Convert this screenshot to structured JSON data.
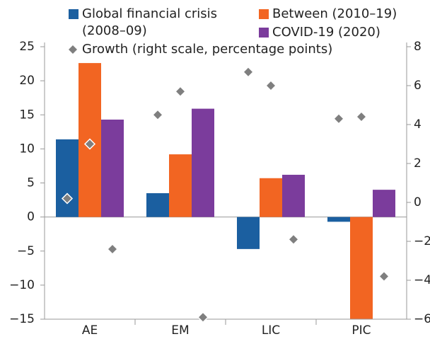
{
  "chart_data": {
    "type": "bar",
    "categories": [
      "AE",
      "EM",
      "LIC",
      "PIC"
    ],
    "series": [
      {
        "name": "Global financial crisis (2008–09)",
        "color": "#1b5fa0",
        "values": [
          11.4,
          3.5,
          -4.7,
          -0.7
        ]
      },
      {
        "name": "Between (2010–19)",
        "color": "#f26522",
        "values": [
          22.6,
          9.2,
          5.7,
          -15
        ]
      },
      {
        "name": "COVID-19 (2020)",
        "color": "#7b3c9c",
        "values": [
          14.3,
          15.9,
          6.2,
          4.0
        ]
      },
      {
        "name": "Growth (right scale, percentage points)",
        "color": "#7f7f7f",
        "axis": "y2",
        "type": "scatter",
        "values": [
          [
            0.2,
            3.0,
            -2.4
          ],
          [
            4.5,
            5.7,
            -5.9
          ],
          [
            6.7,
            6.0,
            -1.9
          ],
          [
            4.3,
            4.4,
            -3.8
          ]
        ]
      }
    ],
    "ylim": [
      -15,
      25
    ],
    "yticks": [
      -15,
      -10,
      -5,
      0,
      5,
      10,
      15,
      20,
      25
    ],
    "y2lim": [
      -6,
      8
    ],
    "y2ticks": [
      -6,
      -4,
      -2,
      0,
      2,
      4,
      6,
      8
    ]
  }
}
